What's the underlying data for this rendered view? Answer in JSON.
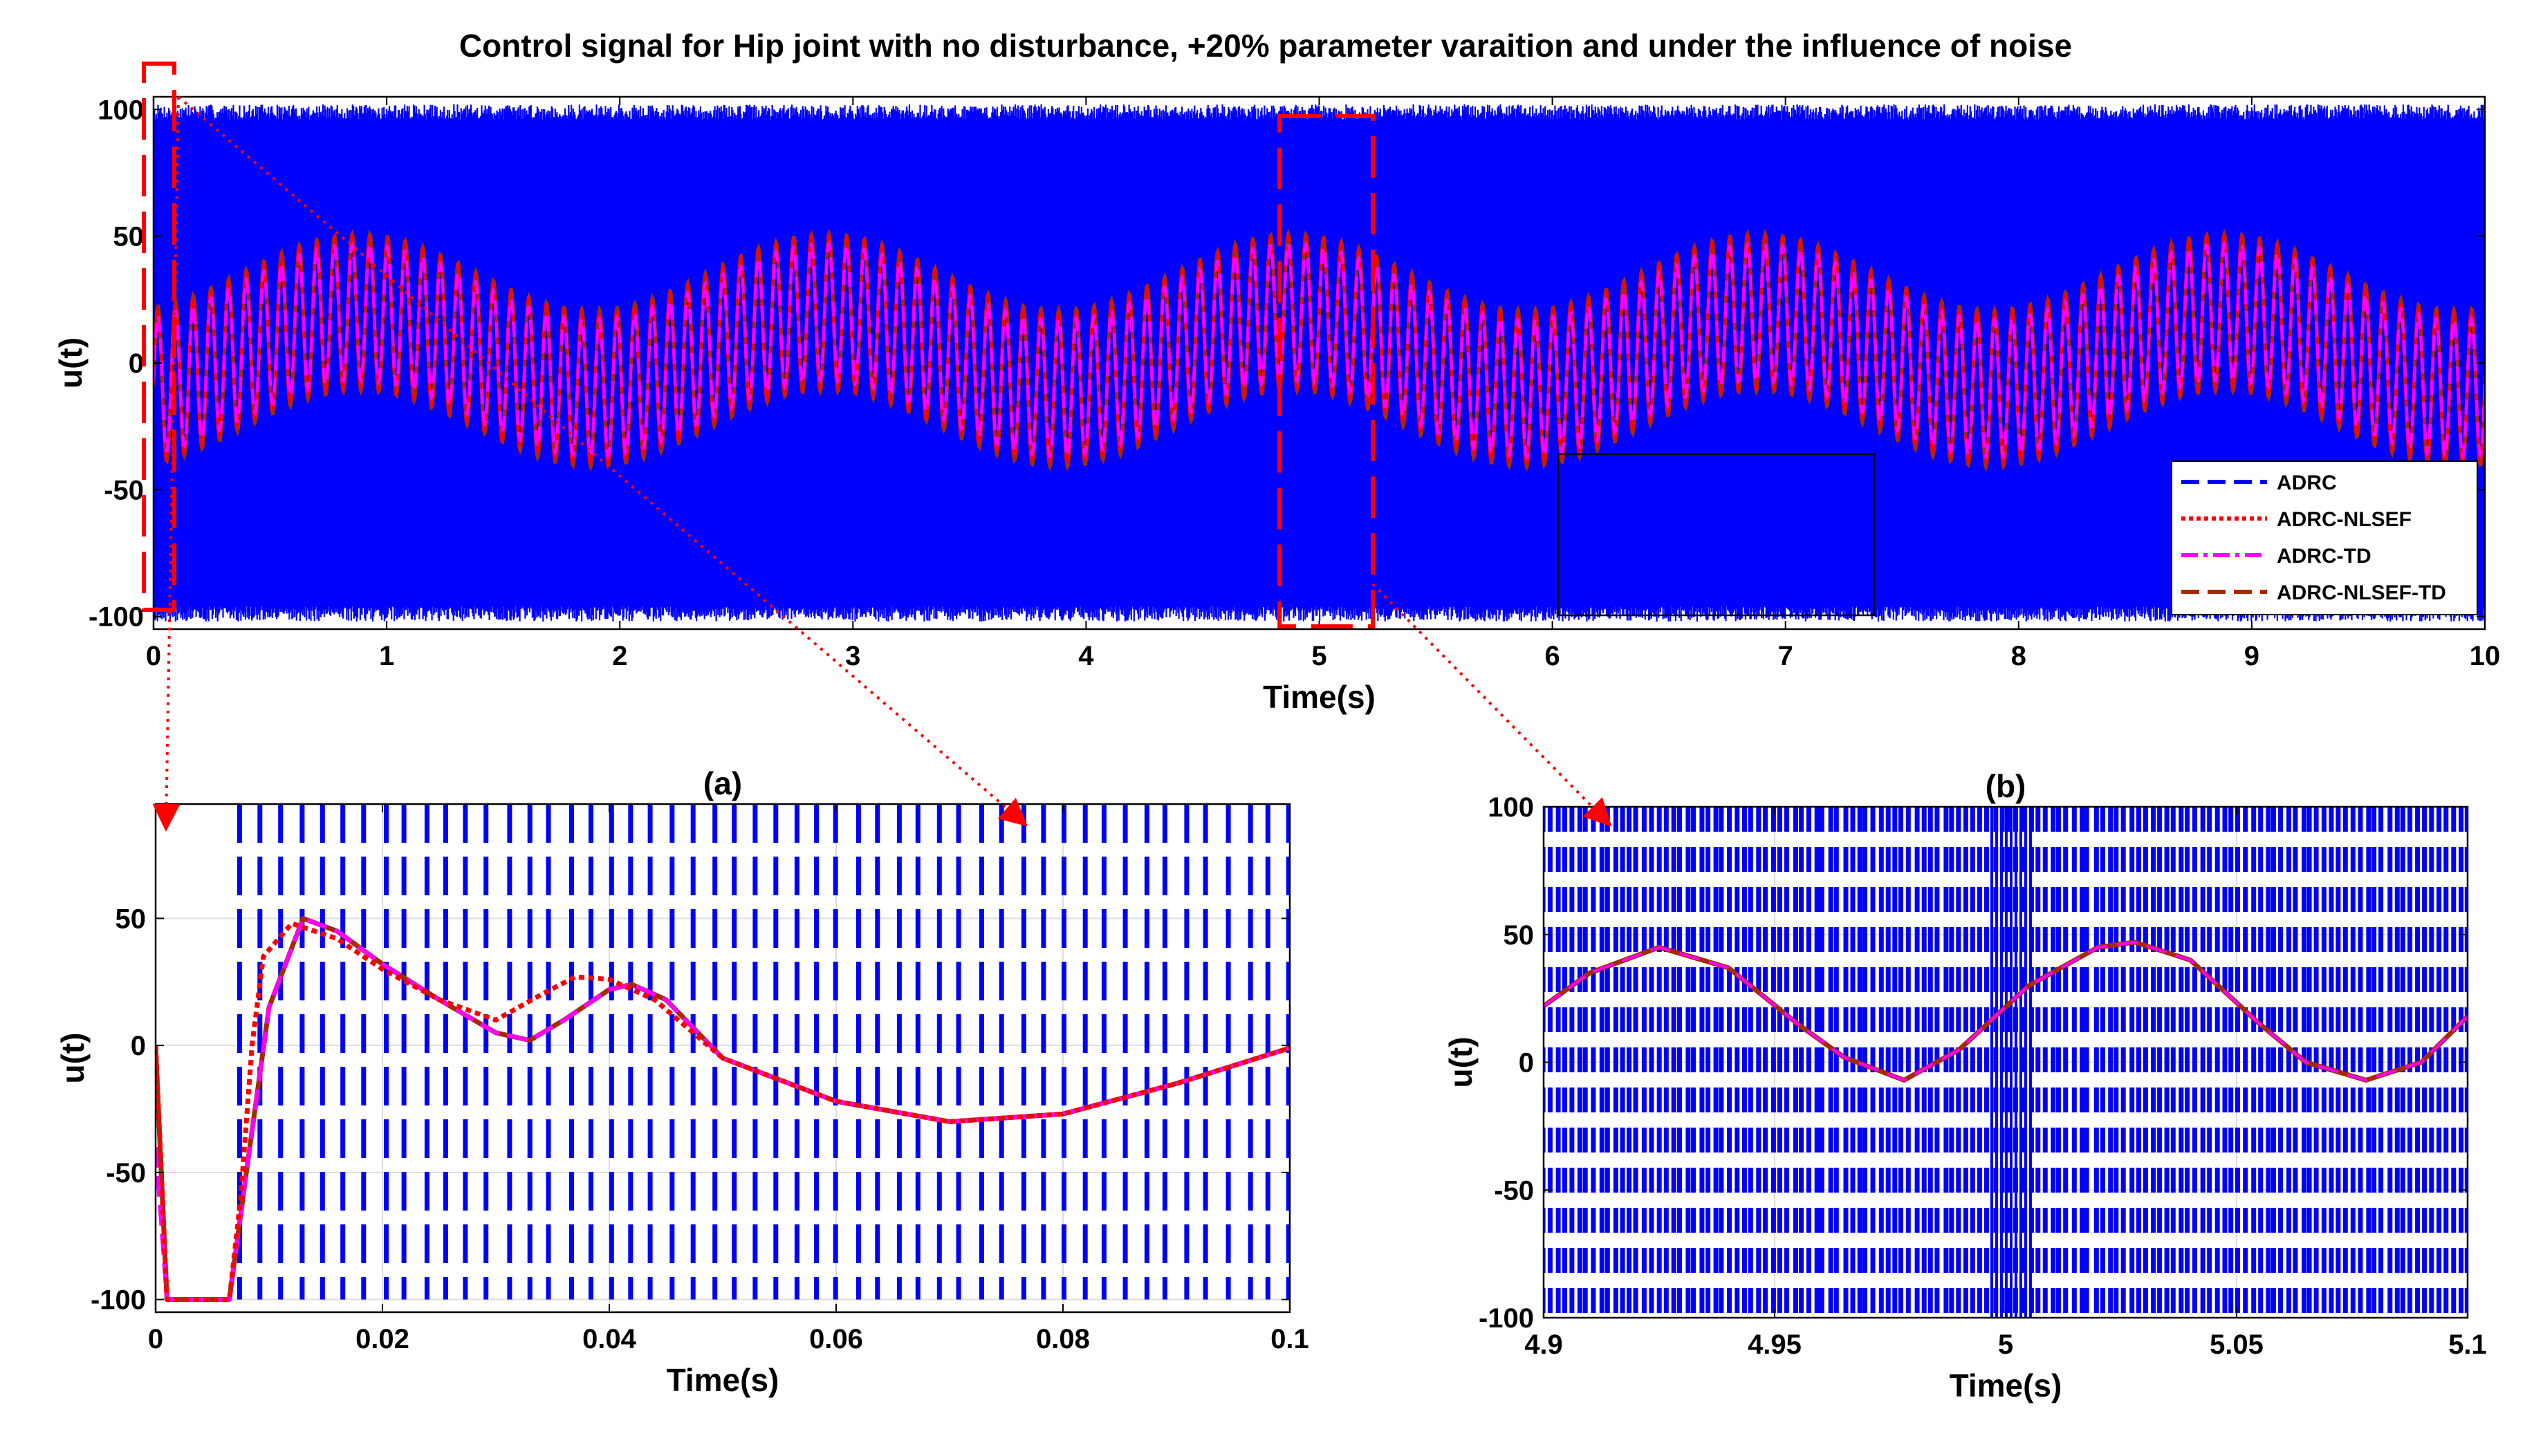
{
  "figure_title": "Control signal for Hip joint with no disturbance, +20% parameter varaition and under the influence of noise",
  "colors": {
    "adrc": "#0000ff",
    "nlsef": "#ff0000",
    "td": "#ff00ff",
    "nlsef_td": "#a52a00",
    "zoom_box": "#ff0000",
    "grid": "#dddddd"
  },
  "chart_data": [
    {
      "id": "main",
      "type": "line",
      "title": "Control signal for Hip joint with no disturbance, +20% parameter varaition and under the influence of noise",
      "xlabel": "Time(s)",
      "ylabel": "u(t)",
      "xlim": [
        0,
        10
      ],
      "ylim": [
        -105,
        105
      ],
      "xticks": [
        0,
        1,
        2,
        3,
        4,
        5,
        6,
        7,
        8,
        9,
        10
      ],
      "yticks": [
        -100,
        -50,
        0,
        50,
        100
      ],
      "legend_position": "bottom-right",
      "series": [
        {
          "name": "ADRC",
          "description": "saturated high-frequency chattering between -100 and 100 over the full time span"
        },
        {
          "name": "ADRC-NLSEF",
          "description": "oscillation of about ±30 (≈13 Hz) riding on a ~2 s period wave of amplitude ≈15"
        },
        {
          "name": "ADRC-TD",
          "description": "oscillation of about ±30 (≈13 Hz) riding on a ~2 s period wave of amplitude ≈15"
        },
        {
          "name": "ADRC-NLSEF-TD",
          "description": "oscillation of about ±30 (≈13 Hz) riding on a ~2 s period wave of amplitude ≈15"
        }
      ],
      "zoom_regions": [
        {
          "label": "(a)",
          "x_range": [
            0,
            0.1
          ]
        },
        {
          "label": "(b)",
          "x_range": [
            4.9,
            5.1
          ]
        }
      ]
    },
    {
      "id": "a",
      "type": "line",
      "title": "(a)",
      "xlabel": "Time(s)",
      "ylabel": "u(t)",
      "xlim": [
        0,
        0.1
      ],
      "ylim": [
        -105,
        95
      ],
      "xticks": [
        0,
        0.02,
        0.04,
        0.06,
        0.08,
        0.1
      ],
      "xtick_labels": [
        "0",
        "0.02",
        "0.04",
        "0.06",
        "0.08",
        "0.1"
      ],
      "yticks": [
        -100,
        -50,
        0,
        50
      ],
      "series": [
        {
          "name": "ADRC",
          "description": "dashed chattering between -100 and 95 throughout"
        },
        {
          "name": "ADRC-NLSEF",
          "x": [
            0,
            0.001,
            0.0065,
            0.0075,
            0.0085,
            0.0095,
            0.012,
            0.016,
            0.02,
            0.025,
            0.03,
            0.034,
            0.037,
            0.04,
            0.044,
            0.05,
            0.06,
            0.07,
            0.08,
            0.09,
            0.1
          ],
          "y": [
            0,
            -100,
            -100,
            -60,
            0,
            35,
            48,
            42,
            30,
            18,
            10,
            20,
            27,
            26,
            18,
            -5,
            -22,
            -30,
            -27,
            -15,
            -1
          ]
        },
        {
          "name": "ADRC-TD",
          "x": [
            0,
            0.001,
            0.0065,
            0.008,
            0.01,
            0.013,
            0.016,
            0.02,
            0.025,
            0.03,
            0.033,
            0.036,
            0.04,
            0.042,
            0.045,
            0.05,
            0.06,
            0.07,
            0.08,
            0.09,
            0.1
          ],
          "y": [
            -40,
            -100,
            -100,
            -50,
            15,
            50,
            45,
            32,
            18,
            5,
            2,
            10,
            22,
            24,
            18,
            -5,
            -22,
            -30,
            -27,
            -15,
            -1
          ]
        },
        {
          "name": "ADRC-NLSEF-TD",
          "x": [
            0,
            0.001,
            0.0065,
            0.008,
            0.01,
            0.013,
            0.016,
            0.02,
            0.025,
            0.03,
            0.033,
            0.036,
            0.04,
            0.042,
            0.045,
            0.05,
            0.06,
            0.07,
            0.08,
            0.09,
            0.1
          ],
          "y": [
            0,
            -100,
            -100,
            -50,
            15,
            50,
            45,
            32,
            18,
            5,
            2,
            10,
            22,
            24,
            18,
            -5,
            -22,
            -30,
            -27,
            -15,
            -1
          ]
        }
      ]
    },
    {
      "id": "b",
      "type": "line",
      "title": "(b)",
      "xlabel": "Time(s)",
      "ylabel": "u(t)",
      "xlim": [
        4.9,
        5.1
      ],
      "ylim": [
        -100,
        100
      ],
      "xticks": [
        4.9,
        4.95,
        5,
        5.05,
        5.1
      ],
      "xtick_labels": [
        "4.9",
        "4.95",
        "5",
        "5.05",
        "5.1"
      ],
      "yticks": [
        -100,
        -50,
        0,
        50,
        100
      ],
      "series": [
        {
          "name": "ADRC",
          "description": "dashed chattering between -100 and 100 throughout"
        },
        {
          "name": "ADRC-NLSEF-TD",
          "x": [
            4.9,
            4.91,
            4.925,
            4.94,
            4.955,
            4.965,
            4.978,
            4.99,
            5.005,
            5.02,
            5.028,
            5.04,
            5.055,
            5.065,
            5.078,
            5.09,
            5.1
          ],
          "y": [
            22,
            35,
            45,
            37,
            15,
            2,
            -7,
            5,
            30,
            45,
            47,
            40,
            15,
            0,
            -7,
            0,
            18
          ]
        }
      ]
    }
  ]
}
